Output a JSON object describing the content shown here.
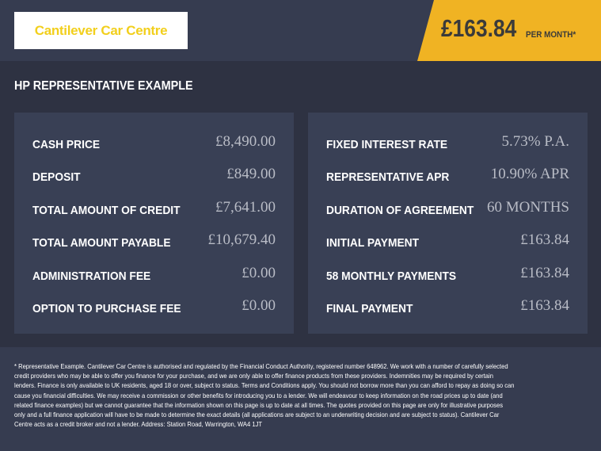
{
  "header": {
    "logo_text": "Cantilever Car Centre",
    "price": "£163.84",
    "per_month": "PER MONTH*",
    "accent": "#f0b323"
  },
  "title": "HP REPRESENTATIVE EXAMPLE",
  "left_rows": [
    {
      "label": "CASH PRICE",
      "value": "£8,490.00"
    },
    {
      "label": "DEPOSIT",
      "value": "£849.00"
    },
    {
      "label": "TOTAL AMOUNT OF CREDIT",
      "value": "£7,641.00"
    },
    {
      "label": "TOTAL AMOUNT PAYABLE",
      "value": "£10,679.40"
    },
    {
      "label": "ADMINISTRATION FEE",
      "value": "£0.00"
    },
    {
      "label": "OPTION TO PURCHASE FEE",
      "value": "£0.00"
    }
  ],
  "right_rows": [
    {
      "label": "FIXED INTEREST RATE",
      "value": "5.73% P.A."
    },
    {
      "label": "REPRESENTATIVE APR",
      "value": "10.90% APR"
    },
    {
      "label": "DURATION OF AGREEMENT",
      "value": "60 MONTHS"
    },
    {
      "label": "INITIAL PAYMENT",
      "value": "£163.84"
    },
    {
      "label": "58 MONTHLY PAYMENTS",
      "value": "£163.84"
    },
    {
      "label": "FINAL PAYMENT",
      "value": "£163.84"
    }
  ],
  "footer": "* Representative Example. Cantilever Car Centre is authorised and regulated by the Financial Conduct Authority, registered number 648962. We work with a number of carefully selected credit providers who may be able to offer you finance for your purchase, and we are only able to offer finance products from these providers. Indemnities may be required by certain lenders. Finance is only available to UK residents, aged 18 or over, subject to status. Terms and Conditions apply. You should not borrow more than you can afford to repay as doing so can cause you financial difficulties. We may receive a commission or other benefits for introducing you to a lender. We will endeavour to keep information on the road prices up to date (and related finance examples) but we cannot guarantee that the information shown on this page is up to date at all times. The quotes provided on this page are only for illustrative purposes only and a full finance application will have to be made to determine the exact details (all applications are subject to an underwriting decision and are subject to status). Cantilever Car Centre acts as a credit broker and not a lender. Address: Station Road, Warrington, WA4 1JT"
}
